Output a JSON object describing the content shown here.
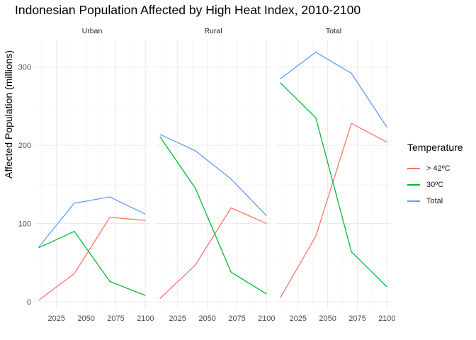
{
  "chart_data": {
    "type": "line",
    "title": "Indonesian Population Affected by High Heat Index, 2010-2100",
    "xlabel": "",
    "ylabel": "Affected Population (millions)",
    "x": [
      2010,
      2040,
      2070,
      2100
    ],
    "xlim": [
      2006,
      2104
    ],
    "ylim": [
      -9,
      335
    ],
    "x_ticks": [
      2025,
      2050,
      2075,
      2100
    ],
    "x_tick_labels": [
      "2025",
      "2050",
      "2075",
      "2100"
    ],
    "y_ticks": [
      0,
      100,
      200,
      300
    ],
    "y_tick_labels": [
      "0",
      "100",
      "200",
      "300"
    ],
    "grid": true,
    "legend": {
      "title": "Temperature",
      "position": "right"
    },
    "series_colors": {
      "> 42ºC": "#F8766D",
      "30ºC": "#00BA38",
      "Total": "#619CFF"
    },
    "panels": [
      {
        "name": "Urban",
        "series": [
          {
            "name": "> 42ºC",
            "values": [
              2,
              36,
              108,
              104
            ]
          },
          {
            "name": "30ºC",
            "values": [
              69,
              90,
              26,
              8
            ]
          },
          {
            "name": "Total",
            "values": [
              70,
              126,
              134,
              112
            ]
          }
        ]
      },
      {
        "name": "Rural",
        "series": [
          {
            "name": "> 42ºC",
            "values": [
              4,
              47,
              120,
              100
            ]
          },
          {
            "name": "30ºC",
            "values": [
              211,
              145,
              38,
              10
            ]
          },
          {
            "name": "Total",
            "values": [
              214,
              193,
              157,
              110
            ]
          }
        ]
      },
      {
        "name": "Total",
        "series": [
          {
            "name": "> 42ºC",
            "values": [
              5,
              84,
              228,
              204
            ]
          },
          {
            "name": "30ºC",
            "values": [
              280,
              235,
              64,
              19
            ]
          },
          {
            "name": "Total",
            "values": [
              285,
              319,
              292,
              223
            ]
          }
        ]
      }
    ]
  }
}
